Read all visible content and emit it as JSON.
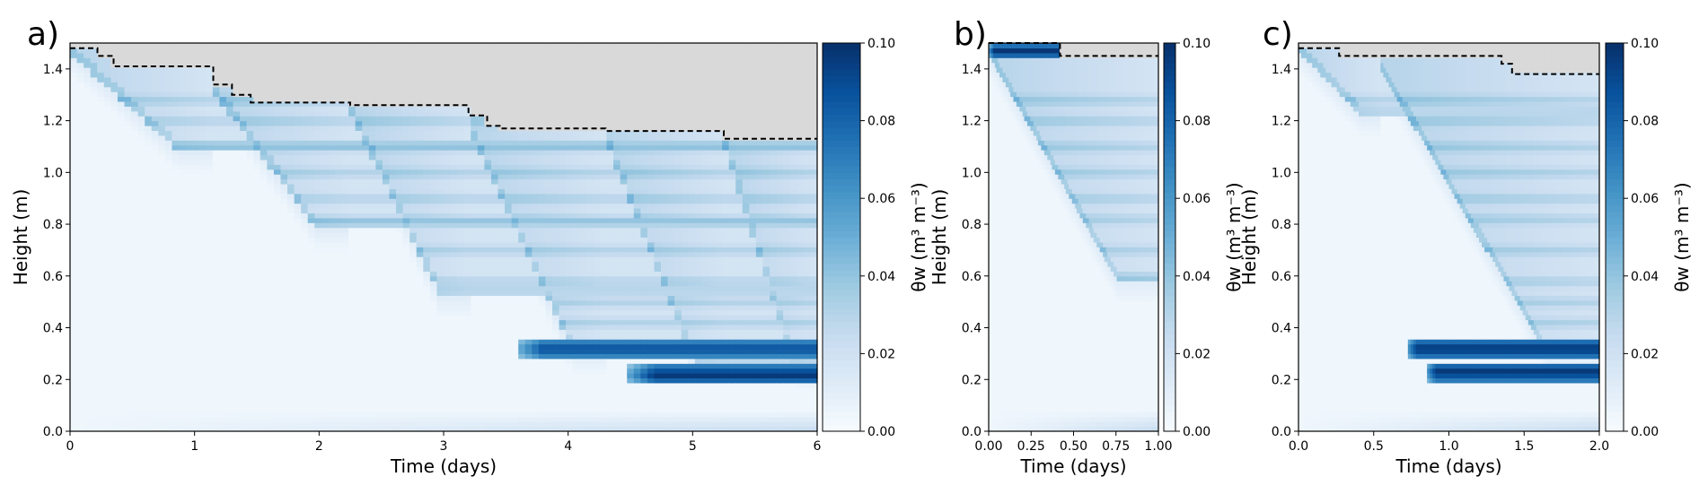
{
  "figure": {
    "colors": {
      "colormap": [
        "#f7fbff",
        "#deebf7",
        "#c6dbef",
        "#9ecae1",
        "#6baed6",
        "#4292c6",
        "#2171b5",
        "#08519c",
        "#08306b"
      ],
      "air_region": "#d9d9d9",
      "wetting_front_line": "#000000"
    }
  },
  "chart_data": [
    {
      "type": "heatmap",
      "panel": "a)",
      "xlabel": "Time (days)",
      "ylabel": "Height (m)",
      "xlim": [
        0,
        6
      ],
      "ylim": [
        0,
        1.5
      ],
      "xticks": [
        "0",
        "1",
        "2",
        "3",
        "4",
        "5",
        "6"
      ],
      "yticks": [
        "0.0",
        "0.2",
        "0.4",
        "0.6",
        "0.8",
        "1.0",
        "1.2",
        "1.4"
      ],
      "colorbar": {
        "label": "θw (m³ m⁻³)",
        "range": [
          0.0,
          0.1
        ],
        "ticks": [
          "0.00",
          "0.02",
          "0.04",
          "0.06",
          "0.08",
          "0.10"
        ]
      },
      "surface_line": {
        "style": "dashed",
        "time": [
          0,
          0.22,
          0.22,
          0.35,
          0.35,
          1.15,
          1.15,
          1.3,
          1.3,
          1.45,
          1.45,
          2.25,
          2.25,
          3.2,
          3.2,
          3.35,
          3.35,
          3.45,
          3.45,
          4.3,
          4.3,
          5.25,
          5.25,
          6.0
        ],
        "height": [
          1.48,
          1.48,
          1.45,
          1.45,
          1.41,
          1.41,
          1.34,
          1.34,
          1.3,
          1.3,
          1.27,
          1.27,
          1.26,
          1.26,
          1.22,
          1.22,
          1.18,
          1.18,
          1.17,
          1.17,
          1.16,
          1.16,
          1.13,
          1.13
        ]
      },
      "pulses": [
        {
          "start": 0.0,
          "top": 1.48,
          "bottom": 1.08,
          "end": 1.15
        },
        {
          "start": 1.15,
          "top": 1.34,
          "bottom": 0.78,
          "end": 2.25
        },
        {
          "start": 2.25,
          "top": 1.27,
          "bottom": 0.52,
          "end": 3.2
        },
        {
          "start": 3.2,
          "top": 1.22,
          "bottom": 0.3,
          "end": 4.3
        },
        {
          "start": 4.3,
          "top": 1.17,
          "bottom": 0.26,
          "end": 5.25
        },
        {
          "start": 5.25,
          "top": 1.16,
          "bottom": 0.24,
          "end": 6.0
        }
      ],
      "wet_bands": [
        {
          "height": 0.32,
          "start": 3.6,
          "value": 0.09
        },
        {
          "height": 0.22,
          "start": 4.5,
          "value": 0.1
        }
      ]
    },
    {
      "type": "heatmap",
      "panel": "b)",
      "xlabel": "Time (days)",
      "ylabel": "Height (m)",
      "xlim": [
        0,
        1
      ],
      "ylim": [
        0,
        1.5
      ],
      "xticks": [
        "0.00",
        "0.25",
        "0.50",
        "0.75",
        "1.00"
      ],
      "yticks": [
        "0.0",
        "0.2",
        "0.4",
        "0.6",
        "0.8",
        "1.0",
        "1.2",
        "1.4"
      ],
      "colorbar": {
        "label": "θw (m³ m⁻³)",
        "range": [
          0.0,
          0.1
        ],
        "ticks": [
          "0.00",
          "0.02",
          "0.04",
          "0.06",
          "0.08",
          "0.10"
        ]
      },
      "surface_line": {
        "style": "dashed",
        "time": [
          0,
          0.42,
          0.42,
          1.0
        ],
        "height": [
          1.5,
          1.5,
          1.45,
          1.45
        ]
      },
      "pulses": [
        {
          "start": 0.0,
          "top": 1.5,
          "bottom": 0.58,
          "end": 1.0
        }
      ],
      "wet_bands": [
        {
          "height": 1.47,
          "start": 0.0,
          "value": 0.1
        }
      ]
    },
    {
      "type": "heatmap",
      "panel": "c)",
      "xlabel": "Time (days)",
      "ylabel": "Height (m)",
      "xlim": [
        0,
        2
      ],
      "ylim": [
        0,
        1.5
      ],
      "xticks": [
        "0.0",
        "0.5",
        "1.0",
        "1.5",
        "2.0"
      ],
      "yticks": [
        "0.0",
        "0.2",
        "0.4",
        "0.6",
        "0.8",
        "1.0",
        "1.2",
        "1.4"
      ],
      "colorbar": {
        "label": "θw (m³ m⁻³)",
        "range": [
          0.0,
          0.1
        ],
        "ticks": [
          "0.00",
          "0.02",
          "0.04",
          "0.06",
          "0.08",
          "0.10"
        ]
      },
      "surface_line": {
        "style": "dashed",
        "time": [
          0,
          0.27,
          0.27,
          1.35,
          1.35,
          1.42,
          1.42,
          2.0
        ],
        "height": [
          1.48,
          1.48,
          1.45,
          1.45,
          1.42,
          1.42,
          1.38,
          1.38
        ]
      },
      "pulses": [
        {
          "start": 0.0,
          "top": 1.48,
          "bottom": 1.22,
          "end": 0.55
        },
        {
          "start": 0.55,
          "top": 1.45,
          "bottom": 0.3,
          "end": 2.0
        }
      ],
      "wet_bands": [
        {
          "height": 0.32,
          "start": 0.72,
          "value": 0.1
        },
        {
          "height": 0.23,
          "start": 0.85,
          "value": 0.1
        }
      ]
    }
  ]
}
